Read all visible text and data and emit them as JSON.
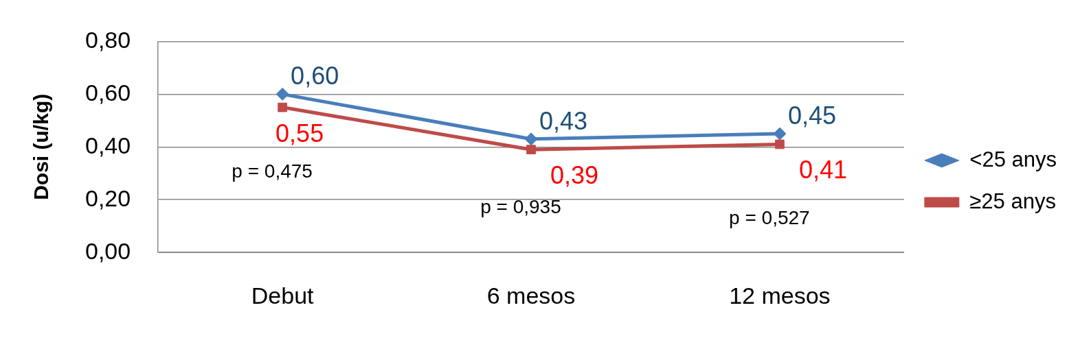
{
  "chart_data": {
    "type": "line",
    "ylabel": "Dosi (u/kg)",
    "categories": [
      "Debut",
      "6 mesos",
      "12 mesos"
    ],
    "series": [
      {
        "name": "<25 anys",
        "color": "#4a7ebb",
        "marker": "diamond",
        "values": [
          0.6,
          0.43,
          0.45
        ],
        "value_labels": [
          "0,60",
          "0,43",
          "0,45"
        ]
      },
      {
        "name": "≥25 anys",
        "color": "#be4b48",
        "marker": "square",
        "values": [
          0.55,
          0.39,
          0.41
        ],
        "value_labels": [
          "0,55",
          "0,39",
          "0,41"
        ]
      }
    ],
    "ylim": [
      0,
      0.8
    ],
    "yticks": [
      {
        "value": 0,
        "label": "0,00"
      },
      {
        "value": 0.2,
        "label": "0,20"
      },
      {
        "value": 0.4,
        "label": "0,40"
      },
      {
        "value": 0.6,
        "label": "0,60"
      },
      {
        "value": 0.8,
        "label": "0,80"
      }
    ],
    "grid": "y",
    "legend": "right",
    "line_style": "solid",
    "annotations": [
      "p = 0,475",
      "p = 0,935",
      "p = 0,527"
    ]
  }
}
